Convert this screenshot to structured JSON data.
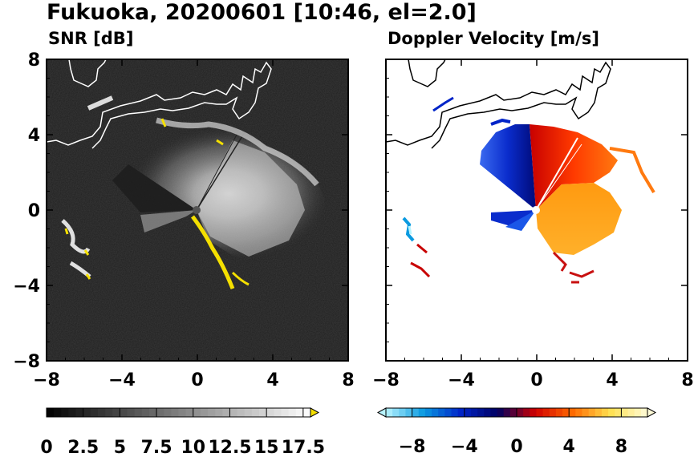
{
  "title": "Fukuoka, 20200601 [10:46, el=2.0]",
  "chart_data": [
    {
      "type": "heatmap",
      "title": "SNR [dB]",
      "xlabel": "",
      "ylabel": "",
      "xlim": [
        -8,
        8
      ],
      "ylim": [
        -8,
        8
      ],
      "x_ticks": [
        "−8",
        "−4",
        "0",
        "4",
        "8"
      ],
      "y_ticks": [
        "−8",
        "−4",
        "0",
        "4",
        "8"
      ],
      "colorbar": {
        "range": [
          0,
          18
        ],
        "extend": "max",
        "ticks": [
          "0",
          "2.5",
          "5",
          "7.5",
          "10",
          "12.5",
          "15",
          "17.5"
        ],
        "tick_values": [
          0,
          2.5,
          5,
          7.5,
          10,
          12.5,
          15,
          17.5
        ],
        "colors": [
          "#000000",
          "#ffffff",
          "#f5e000"
        ]
      }
    },
    {
      "type": "heatmap",
      "title": "Doppler Velocity [m/s]",
      "xlabel": "",
      "ylabel": "",
      "xlim": [
        -8,
        8
      ],
      "ylim": [
        -8,
        8
      ],
      "x_ticks": [
        "−8",
        "−4",
        "0",
        "4",
        "8"
      ],
      "y_ticks": [
        "−8",
        "−4",
        "0",
        "4",
        "8"
      ],
      "colorbar": {
        "range": [
          -10,
          10
        ],
        "extend": "both",
        "ticks": [
          "−8",
          "−4",
          "0",
          "4",
          "8"
        ],
        "tick_values": [
          -8,
          -4,
          0,
          4,
          8
        ],
        "colors": [
          "#b8f4ff",
          "#0a9ae0",
          "#0024c8",
          "#000060",
          "#d00000",
          "#ff6a00",
          "#ffe050",
          "#fffbd8"
        ]
      }
    }
  ]
}
